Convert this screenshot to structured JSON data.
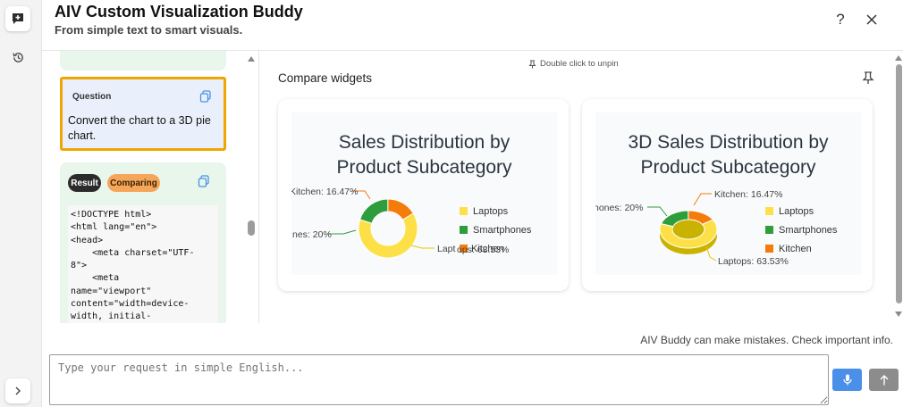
{
  "header": {
    "title": "AIV Custom Visualization Buddy",
    "subtitle": "From simple text to smart visuals.",
    "help_icon": "question-icon",
    "close_icon": "close-icon"
  },
  "rail": {
    "items": [
      {
        "icon": "chat-plus-icon"
      },
      {
        "icon": "history-icon"
      },
      {
        "icon": "chevron-right-icon"
      }
    ]
  },
  "chat": {
    "question": {
      "label": "Question",
      "text": "Convert the chart to a 3D pie chart."
    },
    "result": {
      "label": "Result",
      "status": "Comparing",
      "code": "<!DOCTYPE html>\n<html lang=\"en\">\n<head>\n    <meta charset=\"UTF-\n8\">\n    <meta\nname=\"viewport\"\ncontent=\"width=device-\nwidth, initial-"
    }
  },
  "compare": {
    "unpin_hint": "Double click to unpin",
    "title": "Compare widgets",
    "widgets": [
      {
        "title_line1": "Sales Distribution by",
        "title_line2": "Product Subcategory",
        "slice_labels": [
          "Kitchen: 16.47%",
          "nes: 20%",
          "Lapt",
          "ops: 63.53%"
        ],
        "legend": [
          "Laptops",
          "Smartphones",
          "Kitchen"
        ]
      },
      {
        "title_line1": "3D Sales Distribution by",
        "title_line2": "Product Subcategory",
        "slice_labels": [
          "Kitchen: 16.47%",
          "hones: 20%",
          "Laptops: 63.53%"
        ],
        "legend": [
          "Laptops",
          "Smartphones",
          "Kitchen"
        ]
      }
    ]
  },
  "chart_data": [
    {
      "type": "pie",
      "title": "Sales Distribution by Product Subcategory",
      "categories": [
        "Laptops",
        "Smartphones",
        "Kitchen"
      ],
      "values": [
        63.53,
        20,
        16.47
      ],
      "colors": [
        "#fde047",
        "#2e9d3b",
        "#f57c0a"
      ],
      "legend": "right"
    },
    {
      "type": "pie",
      "title": "3D Sales Distribution by Product Subcategory",
      "categories": [
        "Laptops",
        "Smartphones",
        "Kitchen"
      ],
      "values": [
        63.53,
        20,
        16.47
      ],
      "colors": [
        "#fde047",
        "#2e9d3b",
        "#f57c0a"
      ],
      "legend": "right"
    }
  ],
  "footer": {
    "disclaimer": "AIV Buddy can make mistakes. Check important info.",
    "input_placeholder": "Type your request in simple English...",
    "mic_icon": "microphone-icon",
    "send_icon": "arrow-up-icon"
  }
}
